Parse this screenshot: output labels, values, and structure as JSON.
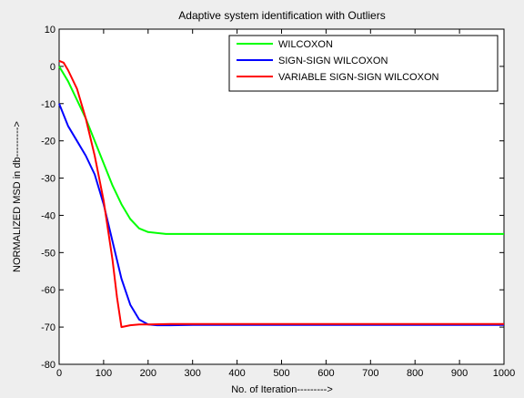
{
  "chart_data": {
    "type": "line",
    "title": "Adaptive system identification with Outliers",
    "xlabel": "No. of Iteration--------->",
    "ylabel": "NORMALIZED MSD in db--------->",
    "xlim": [
      0,
      1000
    ],
    "ylim": [
      -80,
      10
    ],
    "x_ticks": [
      0,
      100,
      200,
      300,
      400,
      500,
      600,
      700,
      800,
      900,
      1000
    ],
    "y_ticks": [
      10,
      0,
      -10,
      -20,
      -30,
      -40,
      -50,
      -60,
      -70,
      -80
    ],
    "x_tick_labels": [
      "0",
      "100",
      "200",
      "300",
      "400",
      "500",
      "600",
      "700",
      "800",
      "900",
      "1000"
    ],
    "y_tick_labels": [
      "10",
      "0",
      "-10",
      "-20",
      "-30",
      "-40",
      "-50",
      "-60",
      "-70",
      "-80"
    ],
    "grid": false,
    "legend_position": "top-right",
    "series": [
      {
        "name": "WILCOXON",
        "color": "#00ff00",
        "x": [
          0,
          20,
          40,
          60,
          80,
          100,
          120,
          140,
          160,
          180,
          200,
          240,
          300,
          400,
          500,
          600,
          700,
          800,
          900,
          1000
        ],
        "y": [
          0,
          -4,
          -9,
          -14,
          -20,
          -26,
          -32,
          -37,
          -41,
          -43.5,
          -44.5,
          -45,
          -45,
          -45,
          -45,
          -45,
          -45,
          -45,
          -45,
          -45
        ]
      },
      {
        "name": "SIGN-SIGN WILCOXON",
        "color": "#0000ff",
        "x": [
          0,
          20,
          40,
          60,
          80,
          100,
          120,
          140,
          160,
          180,
          200,
          220,
          250,
          300,
          400,
          500,
          600,
          700,
          800,
          900,
          1000
        ],
        "y": [
          -10,
          -16,
          -20,
          -24,
          -29,
          -37,
          -47,
          -57,
          -64,
          -68,
          -69.3,
          -69.5,
          -69.5,
          -69.4,
          -69.4,
          -69.4,
          -69.4,
          -69.4,
          -69.4,
          -69.4,
          -69.4
        ]
      },
      {
        "name": "VARIABLE SIGN-SIGN WILCOXON",
        "color": "#ff0000",
        "x": [
          0,
          10,
          20,
          40,
          60,
          80,
          100,
          120,
          130,
          140,
          160,
          180,
          200,
          250,
          300,
          400,
          500,
          600,
          700,
          800,
          900,
          1000
        ],
        "y": [
          1.5,
          1,
          -1,
          -6,
          -14,
          -24,
          -36,
          -52,
          -62,
          -70,
          -69.5,
          -69.3,
          -69.3,
          -69.2,
          -69.2,
          -69.2,
          -69.2,
          -69.2,
          -69.2,
          -69.2,
          -69.2,
          -69.2
        ]
      }
    ]
  }
}
